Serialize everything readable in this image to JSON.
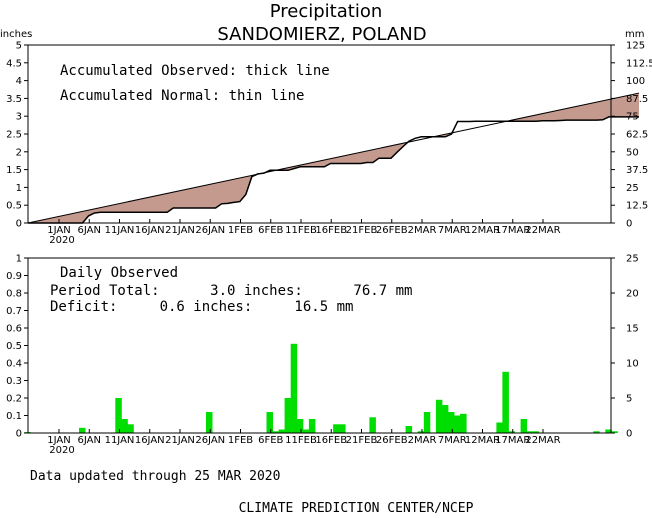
{
  "title": "Precipitation",
  "subtitle": "SANDOMIERZ, POLAND",
  "footer": {
    "updated": "Data updated through 25 MAR 2020",
    "credit": "CLIMATE PREDICTION CENTER/NCEP"
  },
  "colors": {
    "normal_fill": "#c49a8f",
    "daily_bars": "#00dd00",
    "line": "#000000"
  },
  "chart_data": [
    {
      "type": "area",
      "ylabel_left": "inches",
      "ylabel_right": "mm",
      "annotations": [
        "Accumulated Observed: thick line",
        "Accumulated Normal: thin line"
      ],
      "ylim": [
        0,
        5
      ],
      "yticks_left": [
        "0",
        "0.5",
        "1",
        "1.5",
        "2",
        "2.5",
        "3",
        "3.5",
        "4",
        "4.5",
        "5"
      ],
      "yticks_right": [
        "0",
        "12.5",
        "25",
        "37.5",
        "50",
        "62.5",
        "75",
        "87.5",
        "100",
        "112.5",
        "125"
      ],
      "xticks": [
        "1JAN",
        "6JAN",
        "11JAN",
        "16JAN",
        "21JAN",
        "26JAN",
        "1FEB",
        "6FEB",
        "11FEB",
        "16FEB",
        "21FEB",
        "26FEB",
        "2MAR",
        "7MAR",
        "12MAR",
        "17MAR",
        "22MAR"
      ],
      "xtick_year": "2020",
      "normal": {
        "start": 0.0,
        "end": 3.65
      },
      "observed": [
        0,
        0,
        0,
        0,
        0,
        0,
        0,
        0,
        0,
        0,
        0.2,
        0.28,
        0.3,
        0.3,
        0.3,
        0.3,
        0.3,
        0.3,
        0.3,
        0.3,
        0.3,
        0.3,
        0.3,
        0.3,
        0.42,
        0.42,
        0.42,
        0.42,
        0.42,
        0.42,
        0.42,
        0.42,
        0.54,
        0.55,
        0.58,
        0.6,
        0.8,
        1.3,
        1.38,
        1.4,
        1.48,
        1.48,
        1.48,
        1.48,
        1.53,
        1.58,
        1.58,
        1.58,
        1.58,
        1.58,
        1.67,
        1.67,
        1.67,
        1.67,
        1.67,
        1.67,
        1.7,
        1.7,
        1.82,
        1.82,
        1.82,
        1.99,
        2.15,
        2.3,
        2.38,
        2.42,
        2.42,
        2.42,
        2.42,
        2.42,
        2.5,
        2.85,
        2.85,
        2.85,
        2.86,
        2.86,
        2.86,
        2.86,
        2.86,
        2.86,
        2.86,
        2.86,
        2.86,
        2.86,
        2.86,
        2.87,
        2.87,
        2.87,
        2.88,
        2.89,
        2.89,
        2.89,
        2.89,
        2.89,
        2.89,
        2.9,
        2.98,
        2.98,
        2.98,
        2.98,
        2.98,
        2.98
      ]
    },
    {
      "type": "bar",
      "ylabel_left": "inches",
      "ylabel_right": "mm",
      "annotations": [
        "Daily Observed",
        "Period Total:      3.0 inches:      76.7 mm",
        "Deficit:     0.6 inches:     16.5 mm"
      ],
      "ylim": [
        0,
        1
      ],
      "yticks_left": [
        "0",
        "0.1",
        "0.2",
        "0.3",
        "0.4",
        "0.5",
        "0.6",
        "0.7",
        "0.8",
        "0.9",
        "1"
      ],
      "yticks_right": [
        "0",
        "5",
        "10",
        "15",
        "20",
        "25"
      ],
      "xticks": [
        "1JAN",
        "6JAN",
        "11JAN",
        "16JAN",
        "21JAN",
        "26JAN",
        "1FEB",
        "6FEB",
        "11FEB",
        "16FEB",
        "21FEB",
        "26FEB",
        "2MAR",
        "7MAR",
        "12MAR",
        "17MAR",
        "22MAR"
      ],
      "xtick_year": "2020",
      "values": [
        0.005,
        0,
        0,
        0,
        0,
        0,
        0,
        0,
        0,
        0.03,
        0,
        0,
        0,
        0,
        0,
        0.2,
        0.08,
        0.05,
        0,
        0,
        0,
        0,
        0,
        0,
        0,
        0,
        0,
        0,
        0,
        0,
        0.12,
        0,
        0,
        0,
        0,
        0,
        0,
        0,
        0,
        0,
        0.12,
        0.01,
        0.02,
        0.2,
        0.51,
        0.08,
        0.02,
        0.08,
        0,
        0,
        0,
        0.05,
        0.05,
        0,
        0,
        0,
        0,
        0.09,
        0,
        0,
        0,
        0,
        0,
        0.04,
        0,
        0.01,
        0.12,
        0,
        0.19,
        0.16,
        0.12,
        0.1,
        0.11,
        0,
        0,
        0,
        0,
        0,
        0.06,
        0.35,
        0.01,
        0,
        0.08,
        0.01,
        0.01,
        0,
        0,
        0,
        0,
        0,
        0,
        0,
        0,
        0,
        0.01,
        0,
        0.02,
        0.01,
        0,
        0,
        0,
        0,
        0,
        0,
        0,
        0,
        0,
        0.08,
        0
      ]
    }
  ]
}
